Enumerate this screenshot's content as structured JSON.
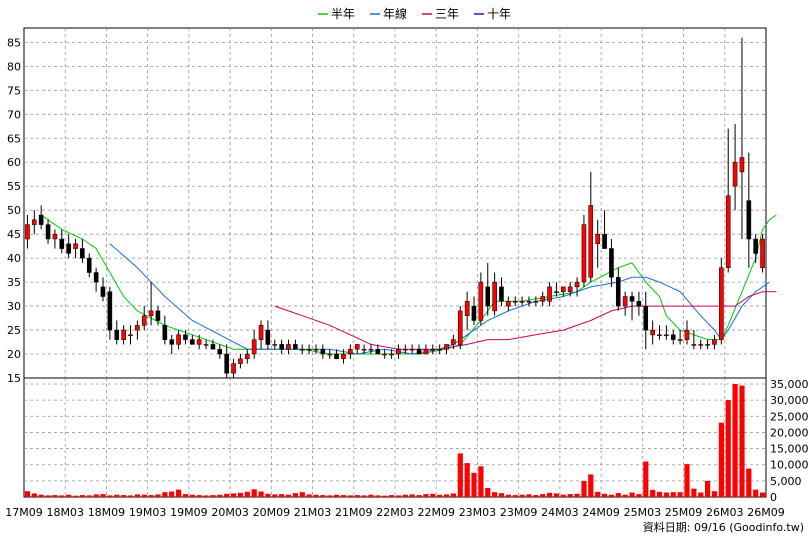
{
  "legend": [
    {
      "label": "半年",
      "color": "#00cc00"
    },
    {
      "label": "年線",
      "color": "#1a6fd6"
    },
    {
      "label": "三年",
      "color": "#cc0066"
    },
    {
      "label": "十年",
      "color": "#660099"
    }
  ],
  "credit": "資料日期: 09/16  (Goodinfo.tw)",
  "chart_data": [
    {
      "type": "candlestick",
      "title": "",
      "ylim": [
        15,
        88
      ],
      "y_ticks": [
        15,
        20,
        25,
        30,
        35,
        40,
        45,
        50,
        55,
        60,
        65,
        70,
        75,
        80,
        85
      ],
      "x_ticks": [
        "17M09",
        "18M03",
        "18M09",
        "19M03",
        "19M09",
        "20M03",
        "20M09",
        "21M03",
        "21M09",
        "22M03",
        "22M09",
        "23M03",
        "23M09",
        "24M03",
        "24M09",
        "25M03",
        "25M09",
        "26M03",
        "26M09"
      ],
      "grid": true,
      "up_color": "#ff0000",
      "down_color": "#000000",
      "candles": [
        [
          44,
          49,
          42,
          47
        ],
        [
          47,
          50,
          45,
          48
        ],
        [
          49,
          51,
          46,
          47
        ],
        [
          47,
          48,
          43,
          44
        ],
        [
          44,
          46,
          42,
          45
        ],
        [
          44,
          46,
          41,
          42
        ],
        [
          43,
          45,
          40,
          41
        ],
        [
          42,
          44,
          40,
          43
        ],
        [
          42,
          44,
          39,
          40
        ],
        [
          40,
          41,
          36,
          37
        ],
        [
          37,
          38,
          33,
          35
        ],
        [
          34,
          36,
          31,
          32
        ],
        [
          33,
          34,
          23,
          25
        ],
        [
          25,
          27,
          22,
          23
        ],
        [
          23,
          26,
          22,
          25
        ],
        [
          24,
          26,
          22,
          24
        ],
        [
          25,
          27,
          23,
          26
        ],
        [
          26,
          30,
          25,
          28
        ],
        [
          28,
          35,
          26,
          29
        ],
        [
          29,
          30,
          26,
          27
        ],
        [
          26,
          28,
          22,
          23
        ],
        [
          23,
          24,
          20,
          22
        ],
        [
          22,
          25,
          21,
          24
        ],
        [
          24,
          25,
          22,
          23
        ],
        [
          23,
          24,
          22,
          22
        ],
        [
          22,
          24,
          21,
          23
        ],
        [
          22,
          23,
          21,
          22
        ],
        [
          22,
          23,
          21,
          21
        ],
        [
          21,
          22,
          19,
          20
        ],
        [
          20,
          22,
          15,
          16
        ],
        [
          16,
          19,
          15,
          18
        ],
        [
          18,
          20,
          17,
          19
        ],
        [
          19,
          21,
          18,
          20
        ],
        [
          20,
          25,
          19,
          23
        ],
        [
          23,
          27,
          21,
          26
        ],
        [
          25,
          27,
          21,
          22
        ],
        [
          22,
          23,
          21,
          22
        ],
        [
          22,
          23,
          20,
          21
        ],
        [
          21,
          23,
          20,
          22
        ],
        [
          22,
          23,
          21,
          21
        ],
        [
          21,
          22,
          20,
          21
        ],
        [
          21,
          22,
          20,
          21
        ],
        [
          21,
          22,
          20,
          21
        ],
        [
          21,
          22,
          19,
          20
        ],
        [
          20,
          21,
          19,
          20
        ],
        [
          20,
          21,
          19,
          19
        ],
        [
          19,
          21,
          18,
          20
        ],
        [
          20,
          22,
          19,
          21
        ],
        [
          21,
          22,
          20,
          22
        ],
        [
          21,
          22,
          20,
          21
        ],
        [
          21,
          22,
          20,
          21
        ],
        [
          21,
          22,
          20,
          20
        ],
        [
          20,
          21,
          19,
          20
        ],
        [
          20,
          21,
          19,
          20
        ],
        [
          20,
          22,
          19,
          21
        ],
        [
          21,
          22,
          20,
          21
        ],
        [
          21,
          22,
          20,
          21
        ],
        [
          21,
          22,
          20,
          20
        ],
        [
          20,
          22,
          20,
          21
        ],
        [
          21,
          22,
          20,
          21
        ],
        [
          21,
          22,
          20,
          21
        ],
        [
          21,
          22,
          20,
          22
        ],
        [
          22,
          24,
          21,
          23
        ],
        [
          22,
          30,
          21,
          29
        ],
        [
          28,
          33,
          25,
          31
        ],
        [
          30,
          32,
          26,
          27
        ],
        [
          27,
          37,
          26,
          35
        ],
        [
          34,
          39,
          28,
          30
        ],
        [
          29,
          37,
          28,
          35
        ],
        [
          34,
          36,
          30,
          31
        ],
        [
          30,
          32,
          29,
          31
        ],
        [
          31,
          32,
          30,
          31
        ],
        [
          31,
          32,
          30,
          31
        ],
        [
          31,
          32,
          30,
          31
        ],
        [
          31,
          32,
          30,
          31
        ],
        [
          31,
          33,
          30,
          32
        ],
        [
          31,
          35,
          30,
          34
        ],
        [
          33,
          35,
          32,
          33
        ],
        [
          33,
          34,
          32,
          34
        ],
        [
          33,
          35,
          32,
          34
        ],
        [
          34,
          36,
          32,
          35
        ],
        [
          35,
          49,
          34,
          47
        ],
        [
          36,
          58,
          35,
          51
        ],
        [
          43,
          48,
          38,
          45
        ],
        [
          45,
          50,
          42,
          42
        ],
        [
          42,
          44,
          34,
          36
        ],
        [
          36,
          38,
          29,
          30
        ],
        [
          30,
          33,
          28,
          32
        ],
        [
          32,
          33,
          27,
          31
        ],
        [
          31,
          33,
          28,
          30
        ],
        [
          30,
          33,
          21,
          25
        ],
        [
          24,
          27,
          22,
          25
        ],
        [
          24,
          26,
          23,
          24
        ],
        [
          24,
          26,
          23,
          24
        ],
        [
          24,
          25,
          22,
          23
        ],
        [
          23,
          25,
          22,
          23
        ],
        [
          23,
          27,
          22,
          25
        ],
        [
          22,
          25,
          21,
          22
        ],
        [
          22,
          23,
          21,
          22
        ],
        [
          22,
          23,
          21,
          22
        ],
        [
          22,
          24,
          21,
          23
        ],
        [
          23,
          40,
          22,
          38
        ],
        [
          38,
          67,
          37,
          53
        ],
        [
          55,
          68,
          50,
          60
        ],
        [
          58,
          86,
          44,
          61
        ],
        [
          52,
          62,
          38,
          44
        ],
        [
          44,
          45,
          39,
          41
        ],
        [
          38,
          45,
          37,
          44
        ]
      ],
      "moving_averages": [
        {
          "name": "半年",
          "color": "#00cc00",
          "points": [
            [
              2,
              49
            ],
            [
              5,
              46
            ],
            [
              8,
              44
            ],
            [
              10,
              42
            ],
            [
              12,
              37
            ],
            [
              14,
              32
            ],
            [
              16,
              29
            ],
            [
              20,
              26
            ],
            [
              24,
              24
            ],
            [
              30,
              21
            ],
            [
              33,
              21
            ],
            [
              40,
              21
            ],
            [
              44,
              20
            ],
            [
              52,
              20
            ],
            [
              57,
              20
            ],
            [
              61,
              21
            ],
            [
              63,
              22
            ],
            [
              66,
              27
            ],
            [
              68,
              31
            ],
            [
              70,
              31
            ],
            [
              72,
              31
            ],
            [
              76,
              32
            ],
            [
              80,
              33
            ],
            [
              82,
              35
            ],
            [
              86,
              38
            ],
            [
              88,
              39
            ],
            [
              90,
              35
            ],
            [
              92,
              32
            ],
            [
              93,
              28
            ],
            [
              95,
              25
            ],
            [
              99,
              23
            ],
            [
              101,
              23
            ],
            [
              102,
              26
            ],
            [
              104,
              33
            ],
            [
              106,
              40
            ],
            [
              107,
              46
            ],
            [
              108,
              48
            ],
            [
              109,
              49
            ]
          ]
        },
        {
          "name": "年線",
          "color": "#1a6fd6",
          "points": [
            [
              12,
              43
            ],
            [
              16,
              38
            ],
            [
              20,
              32
            ],
            [
              24,
              27
            ],
            [
              28,
              24
            ],
            [
              32,
              21
            ],
            [
              36,
              21
            ],
            [
              40,
              21
            ],
            [
              44,
              21
            ],
            [
              48,
              20
            ],
            [
              52,
              21
            ],
            [
              56,
              20
            ],
            [
              60,
              21
            ],
            [
              62,
              22
            ],
            [
              64,
              24
            ],
            [
              67,
              27
            ],
            [
              70,
              29
            ],
            [
              74,
              31
            ],
            [
              78,
              32
            ],
            [
              82,
              34
            ],
            [
              86,
              35
            ],
            [
              88,
              36
            ],
            [
              90,
              36
            ],
            [
              92,
              35
            ],
            [
              95,
              33
            ],
            [
              98,
              28
            ],
            [
              100,
              25
            ],
            [
              101,
              23
            ],
            [
              102,
              25
            ],
            [
              104,
              30
            ],
            [
              106,
              33
            ],
            [
              108,
              35
            ]
          ]
        },
        {
          "name": "三年",
          "color": "#cc0066",
          "points": [
            [
              36,
              30
            ],
            [
              38,
              29
            ],
            [
              40,
              28
            ],
            [
              44,
              26
            ],
            [
              47,
              24
            ],
            [
              50,
              22
            ],
            [
              54,
              21
            ],
            [
              60,
              21
            ],
            [
              64,
              22
            ],
            [
              67,
              23
            ],
            [
              70,
              23
            ],
            [
              74,
              24
            ],
            [
              78,
              25
            ],
            [
              82,
              27
            ],
            [
              85,
              29
            ],
            [
              88,
              30
            ],
            [
              92,
              30
            ],
            [
              96,
              30
            ],
            [
              100,
              30
            ],
            [
              103,
              30
            ],
            [
              105,
              32
            ],
            [
              107,
              33
            ],
            [
              109,
              33
            ]
          ]
        },
        {
          "name": "十年",
          "color": "#660099",
          "points": []
        }
      ]
    },
    {
      "type": "bar",
      "title": "",
      "ylim": [
        0,
        35000
      ],
      "y_ticks": [
        0,
        5000,
        10000,
        15000,
        20000,
        25000,
        30000,
        35000
      ],
      "y_tick_labels": [
        "0",
        "5,000",
        "10,000",
        "15,000",
        "20,000",
        "25,000",
        "30,000",
        "35,000"
      ],
      "color": "#ff0000",
      "values": [
        1800,
        1100,
        700,
        500,
        600,
        500,
        700,
        400,
        600,
        500,
        800,
        900,
        500,
        700,
        600,
        500,
        800,
        700,
        600,
        800,
        1500,
        1700,
        2300,
        900,
        700,
        600,
        500,
        600,
        700,
        1000,
        1100,
        1300,
        1600,
        2400,
        1700,
        1000,
        800,
        900,
        700,
        1200,
        1500,
        800,
        700,
        600,
        500,
        700,
        600,
        500,
        600,
        500,
        700,
        500,
        400,
        600,
        500,
        700,
        800,
        600,
        900,
        1000,
        700,
        800,
        1100,
        13500,
        10500,
        7500,
        9500,
        2800,
        1500,
        1200,
        700,
        600,
        700,
        800,
        600,
        900,
        1300,
        1100,
        700,
        900,
        1000,
        5000,
        7000,
        1600,
        1000,
        700,
        1200,
        700,
        1400,
        900,
        11000,
        2200,
        1600,
        1400,
        1500,
        1500,
        10200,
        2600,
        1400,
        5000,
        1800,
        23000,
        30000,
        35000,
        34500,
        8800,
        2300,
        1400
      ]
    }
  ]
}
